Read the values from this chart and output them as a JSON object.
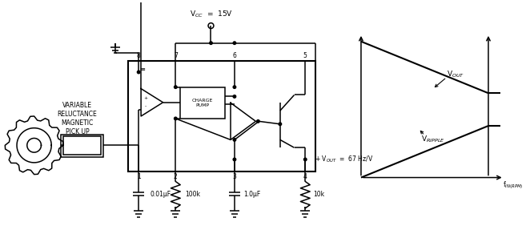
{
  "bg_color": "#ffffff",
  "line_color": "#000000",
  "fig_width": 6.57,
  "fig_height": 2.87,
  "dpi": 100,
  "vcc_label": "V$_{CC}$  =  15V",
  "vout_annotation": "+ V$_{OUT}$  =  67 Hz/V",
  "charge_pump_label": "CHARGE\nPUMP",
  "variable_label": "VARIABLE\nRELUCTANCE\nMAGNETIC\nPICK UP",
  "graph_vout_label": "V$_{OUT}$",
  "graph_vripple_label": "V$_{RIPPLE}$",
  "graph_xlabel": "f$_{IN(RPM)}$",
  "cap_label1": "0.01$_{\\mu}$F",
  "cap_label2": "1.0$_{\\mu}$F",
  "res_label1": "100k",
  "res_label2": "10k"
}
